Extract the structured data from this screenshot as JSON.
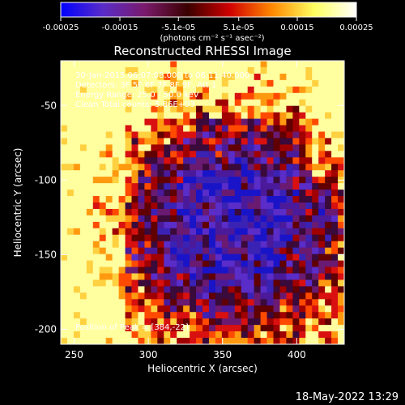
{
  "chart_data": {
    "type": "heatmap",
    "title": "Reconstructed RHESSI Image",
    "xlabel": "Heliocentric X (arcsec)",
    "ylabel": "Heliocentric Y (arcsec)",
    "xlim": [
      241,
      432
    ],
    "ylim": [
      -210,
      -20
    ],
    "xticks": [
      250,
      300,
      350,
      400
    ],
    "yticks": [
      -50,
      -100,
      -150,
      -200
    ],
    "colorbar": {
      "min": -0.00025,
      "max": 0.00025,
      "tick_labels": [
        "-0.00025",
        "-0.00015",
        "-5.1e-05",
        "5.1e-05",
        "0.00015",
        "0.00025"
      ],
      "tick_values": [
        -0.00025,
        -0.00015,
        -5.1e-05,
        5.1e-05,
        0.00015,
        0.00025
      ],
      "unit_label": "(photons cm⁻² s⁻¹ asec⁻²)",
      "colors": [
        "#0000ff",
        "#5a2cc8",
        "#7a1a6a",
        "#3a0000",
        "#d00000",
        "#ff8800",
        "#ffff60",
        "#ffffff"
      ]
    },
    "annotations": [
      "30-Jan-2015 06:07:08.000 to 06:11:40.000",
      "Detectors: 3F 5F 6F 7F 8F 9F, Att 1",
      "Energy Range: 25.0 - 50.0 keV",
      "Clean     Total counts: 5.86E+03"
    ],
    "peak_label": "Position of Peak = [384,-22]",
    "peak": [
      384,
      -22
    ],
    "timestamp": "18-May-2022 13:29",
    "map_description": "Noisy CLEAN residual map: bright red/orange/yellow emission concentrated toward left, top and right edges; low (blue/purple) values in the central region around x 300-400, y -80 to -180."
  }
}
